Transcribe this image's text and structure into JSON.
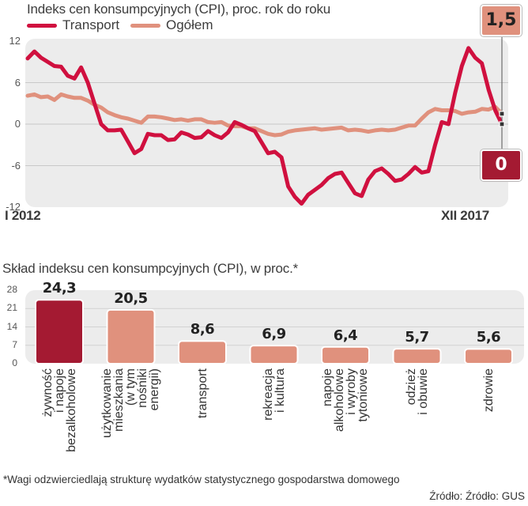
{
  "chart_data": [
    {
      "type": "line",
      "title": "Indeks cen konsumpcyjnych (CPI), proc. rok do roku",
      "xlabel": "",
      "ylabel": "",
      "x_start_label": "I 2012",
      "x_end_label": "XII 2017",
      "ylim": [
        -12,
        12
      ],
      "yticks": [
        "12",
        "6",
        "0",
        "-6",
        "-12"
      ],
      "ytick_values": [
        12,
        6,
        0,
        -6,
        -12
      ],
      "grid": true,
      "legend": "top-left",
      "series": [
        {
          "name": "Transport",
          "color": "#d0103f",
          "end_label": "0",
          "values": [
            9.5,
            10.5,
            9.6,
            9.0,
            8.4,
            8.3,
            7.0,
            6.6,
            8.2,
            6.0,
            3.0,
            0.0,
            -0.9,
            -0.9,
            -0.8,
            -2.5,
            -4.2,
            -3.6,
            -1.4,
            -1.6,
            -1.6,
            -2.3,
            -2.2,
            -1.2,
            -1.5,
            -2.0,
            -1.9,
            -1.0,
            -1.6,
            -2.0,
            -1.2,
            0.3,
            -0.1,
            -0.6,
            -1.0,
            -2.6,
            -4.2,
            -4.0,
            -4.8,
            -9.0,
            -10.5,
            -11.5,
            -10.2,
            -9.5,
            -8.8,
            -7.8,
            -7.2,
            -7.0,
            -8.5,
            -10.0,
            -10.4,
            -8.0,
            -6.8,
            -6.4,
            -7.2,
            -8.2,
            -8.0,
            -7.2,
            -6.2,
            -7.0,
            -6.8,
            -3.0,
            0.3,
            0.0,
            4.5,
            8.4,
            11.0,
            9.6,
            8.8,
            5.0,
            2.0,
            0.0
          ]
        },
        {
          "name": "Ogółem",
          "color": "#e0917d",
          "end_label": "1,5",
          "values": [
            4.1,
            4.3,
            3.9,
            4.0,
            3.5,
            4.3,
            4.0,
            3.8,
            3.8,
            3.4,
            2.8,
            2.4,
            1.7,
            1.3,
            1.0,
            0.8,
            0.5,
            0.2,
            1.1,
            1.1,
            1.0,
            0.8,
            0.6,
            0.7,
            0.5,
            0.7,
            0.7,
            0.3,
            0.2,
            0.3,
            -0.2,
            -0.3,
            -0.3,
            -0.6,
            -0.6,
            -1.0,
            -1.4,
            -1.6,
            -1.5,
            -1.1,
            -0.9,
            -0.8,
            -0.7,
            -0.6,
            -0.8,
            -0.7,
            -0.6,
            -0.5,
            -0.9,
            -0.8,
            -0.9,
            -1.1,
            -0.9,
            -0.8,
            -0.9,
            -0.8,
            -0.5,
            -0.2,
            -0.2,
            0.8,
            1.7,
            2.2,
            2.0,
            2.0,
            1.9,
            1.5,
            1.7,
            1.8,
            2.2,
            2.1,
            2.5,
            1.5
          ]
        }
      ]
    },
    {
      "type": "bar",
      "title": "Skład indeksu cen konsumpcyjnych (CPI), w proc.*",
      "xlabel": "",
      "ylabel": "",
      "ylim": [
        0,
        28
      ],
      "yticks": [
        "28",
        "21",
        "14",
        "7",
        "0"
      ],
      "ytick_values": [
        28,
        21,
        14,
        7,
        0
      ],
      "grid": true,
      "categories": [
        "żywność\ni napoje\nbezalkoholowe",
        "użytkowanie\nmieszkania\n(w tym\nnośniki\nenergii)",
        "transport",
        "rekreacja\ni kultura",
        "napoje\nalkoholowe\ni wyroby\ntytoniowe",
        "odzież\ni obuwie",
        "zdrowie"
      ],
      "values": [
        24.3,
        20.5,
        8.6,
        6.9,
        6.4,
        5.7,
        5.6
      ],
      "value_labels": [
        "24,3",
        "20,5",
        "8,6",
        "6,9",
        "6,4",
        "5,7",
        "5,6"
      ],
      "colors": [
        "#a41a32",
        "#e0917d",
        "#e0917d",
        "#e0917d",
        "#e0917d",
        "#e0917d",
        "#e0917d"
      ]
    }
  ],
  "footnote": "*Wagi odzwierciedlają strukturę wydatków statystycznego gospodarstwa domowego",
  "source": "Źródło: Źródło: GUS"
}
